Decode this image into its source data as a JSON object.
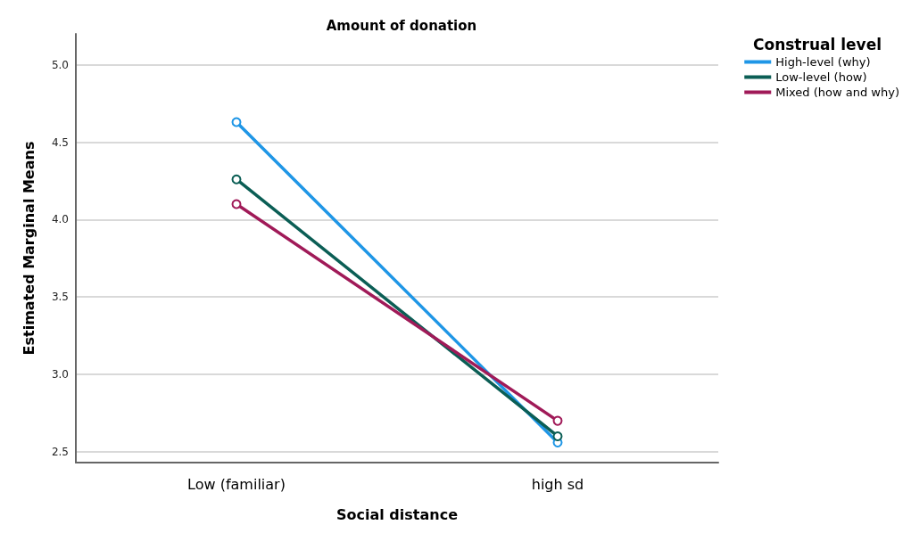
{
  "chart_data": {
    "type": "line",
    "title": "Amount of donation",
    "xlabel": "Social distance",
    "ylabel": "Estimated Marginal Means",
    "legend_title": "Construal level",
    "categories": [
      "Low (familiar)",
      "high sd"
    ],
    "series": [
      {
        "name": "High-level (why)",
        "color": "#1f96e6",
        "values": [
          4.63,
          2.56
        ]
      },
      {
        "name": "Low-level (how)",
        "color": "#0b5e55",
        "values": [
          4.26,
          2.6
        ]
      },
      {
        "name": "Mixed (how and why)",
        "color": "#a01a58",
        "values": [
          4.1,
          2.7
        ]
      }
    ],
    "ylim": [
      2.43,
      5.2
    ],
    "yticks": [
      2.5,
      {
        "value": 3,
        "label": "3.0"
      },
      3.5,
      {
        "value": 4,
        "label": "4.0"
      },
      4.5,
      {
        "value": 5,
        "label": "5.0"
      }
    ],
    "grid": "y",
    "legend": "top right",
    "marker": "circle",
    "line_style": "solid"
  }
}
